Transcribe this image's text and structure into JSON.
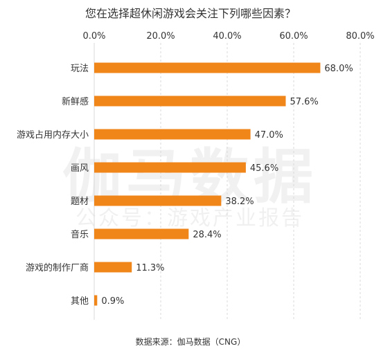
{
  "title": "您在选择超休闲游戏会关注下列哪些因素？",
  "source": "数据来源：伽马数据（CNG）",
  "watermark": {
    "main": "伽马数据",
    "sub": "公众号：游戏产业报告"
  },
  "colors": {
    "bar": "#F0851A",
    "grid": "#D9D9D9",
    "text": "#333333"
  },
  "chart_data": {
    "type": "bar",
    "orientation": "horizontal",
    "title": "您在选择超休闲游戏会关注下列哪些因素？",
    "categories": [
      "玩法",
      "新鲜感",
      "游戏占用内存大小",
      "画风",
      "题材",
      "音乐",
      "游戏的制作厂商",
      "其他"
    ],
    "values": [
      68.0,
      57.6,
      47.0,
      45.6,
      38.2,
      28.4,
      11.3,
      0.9
    ],
    "value_labels": [
      "68.0%",
      "57.6%",
      "47.0%",
      "45.6%",
      "38.2%",
      "28.4%",
      "11.3%",
      "0.9%"
    ],
    "xlim": [
      0,
      80
    ],
    "x_ticks": [
      0,
      20,
      40,
      60,
      80
    ],
    "x_tick_labels": [
      "0.0%",
      "20.0%",
      "40.0%",
      "60.0%",
      "80.0%"
    ],
    "x_axis_position": "top",
    "grid": true,
    "legend": false
  }
}
